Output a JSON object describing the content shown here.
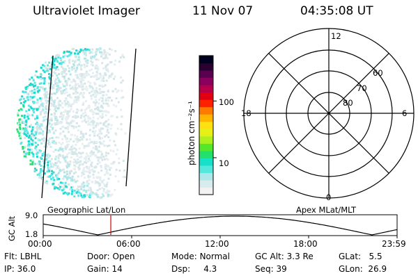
{
  "header": {
    "instrument": "Ultraviolet Imager",
    "date": "11 Nov 07",
    "time": "04:35:08 UT"
  },
  "colorbar": {
    "label": "photon cm⁻²s⁻¹",
    "ticks": [
      "100",
      "10"
    ],
    "tick_values": [
      100,
      10
    ],
    "range_log10": [
      0.35,
      2.8
    ],
    "colors": [
      "#f2f2f2",
      "#d8ecee",
      "#aee7ea",
      "#54e7de",
      "#16e0c8",
      "#22e06a",
      "#55e82a",
      "#aef01e",
      "#e6f018",
      "#ffe010",
      "#ffb400",
      "#ff7a00",
      "#ff2000",
      "#e00010",
      "#b8004a",
      "#8a005e",
      "#5a0050",
      "#2a0030",
      "#000020"
    ]
  },
  "polar_plot": {
    "mlt_labels": {
      "top": "12",
      "left": "18",
      "right": "6",
      "bottom": "0"
    },
    "lat_labels": [
      "60",
      "70",
      "80"
    ],
    "lat_values": [
      60,
      70,
      80
    ]
  },
  "alt_panel": {
    "y_label": "GC Alt",
    "y_ticks": [
      "9.0",
      "1.8"
    ],
    "left_caption": "Geographic Lat/Lon",
    "right_caption": "Apex MLat/MLT",
    "x_ticks": [
      "00:00",
      "06:00",
      "12:00",
      "18:00",
      "23:59"
    ],
    "current_time_hours": 4.585,
    "marker_color": "#d00000"
  },
  "info": {
    "row1": [
      {
        "label": "Flt:",
        "value": "LBHL"
      },
      {
        "label": "Door:",
        "value": "Open"
      },
      {
        "label": "Mode:",
        "value": "Normal"
      },
      {
        "label": "GC Alt:",
        "value": "3.3 Re"
      },
      {
        "label": "GLat:",
        "value": "5.5"
      }
    ],
    "row2": [
      {
        "label": "IP:",
        "value": "36.0"
      },
      {
        "label": "Gain:",
        "value": "14"
      },
      {
        "label": "Dsp:",
        "value": "4.3"
      },
      {
        "label": "Seq:",
        "value": "39"
      },
      {
        "label": "GLon:",
        "value": "26.9"
      }
    ]
  }
}
